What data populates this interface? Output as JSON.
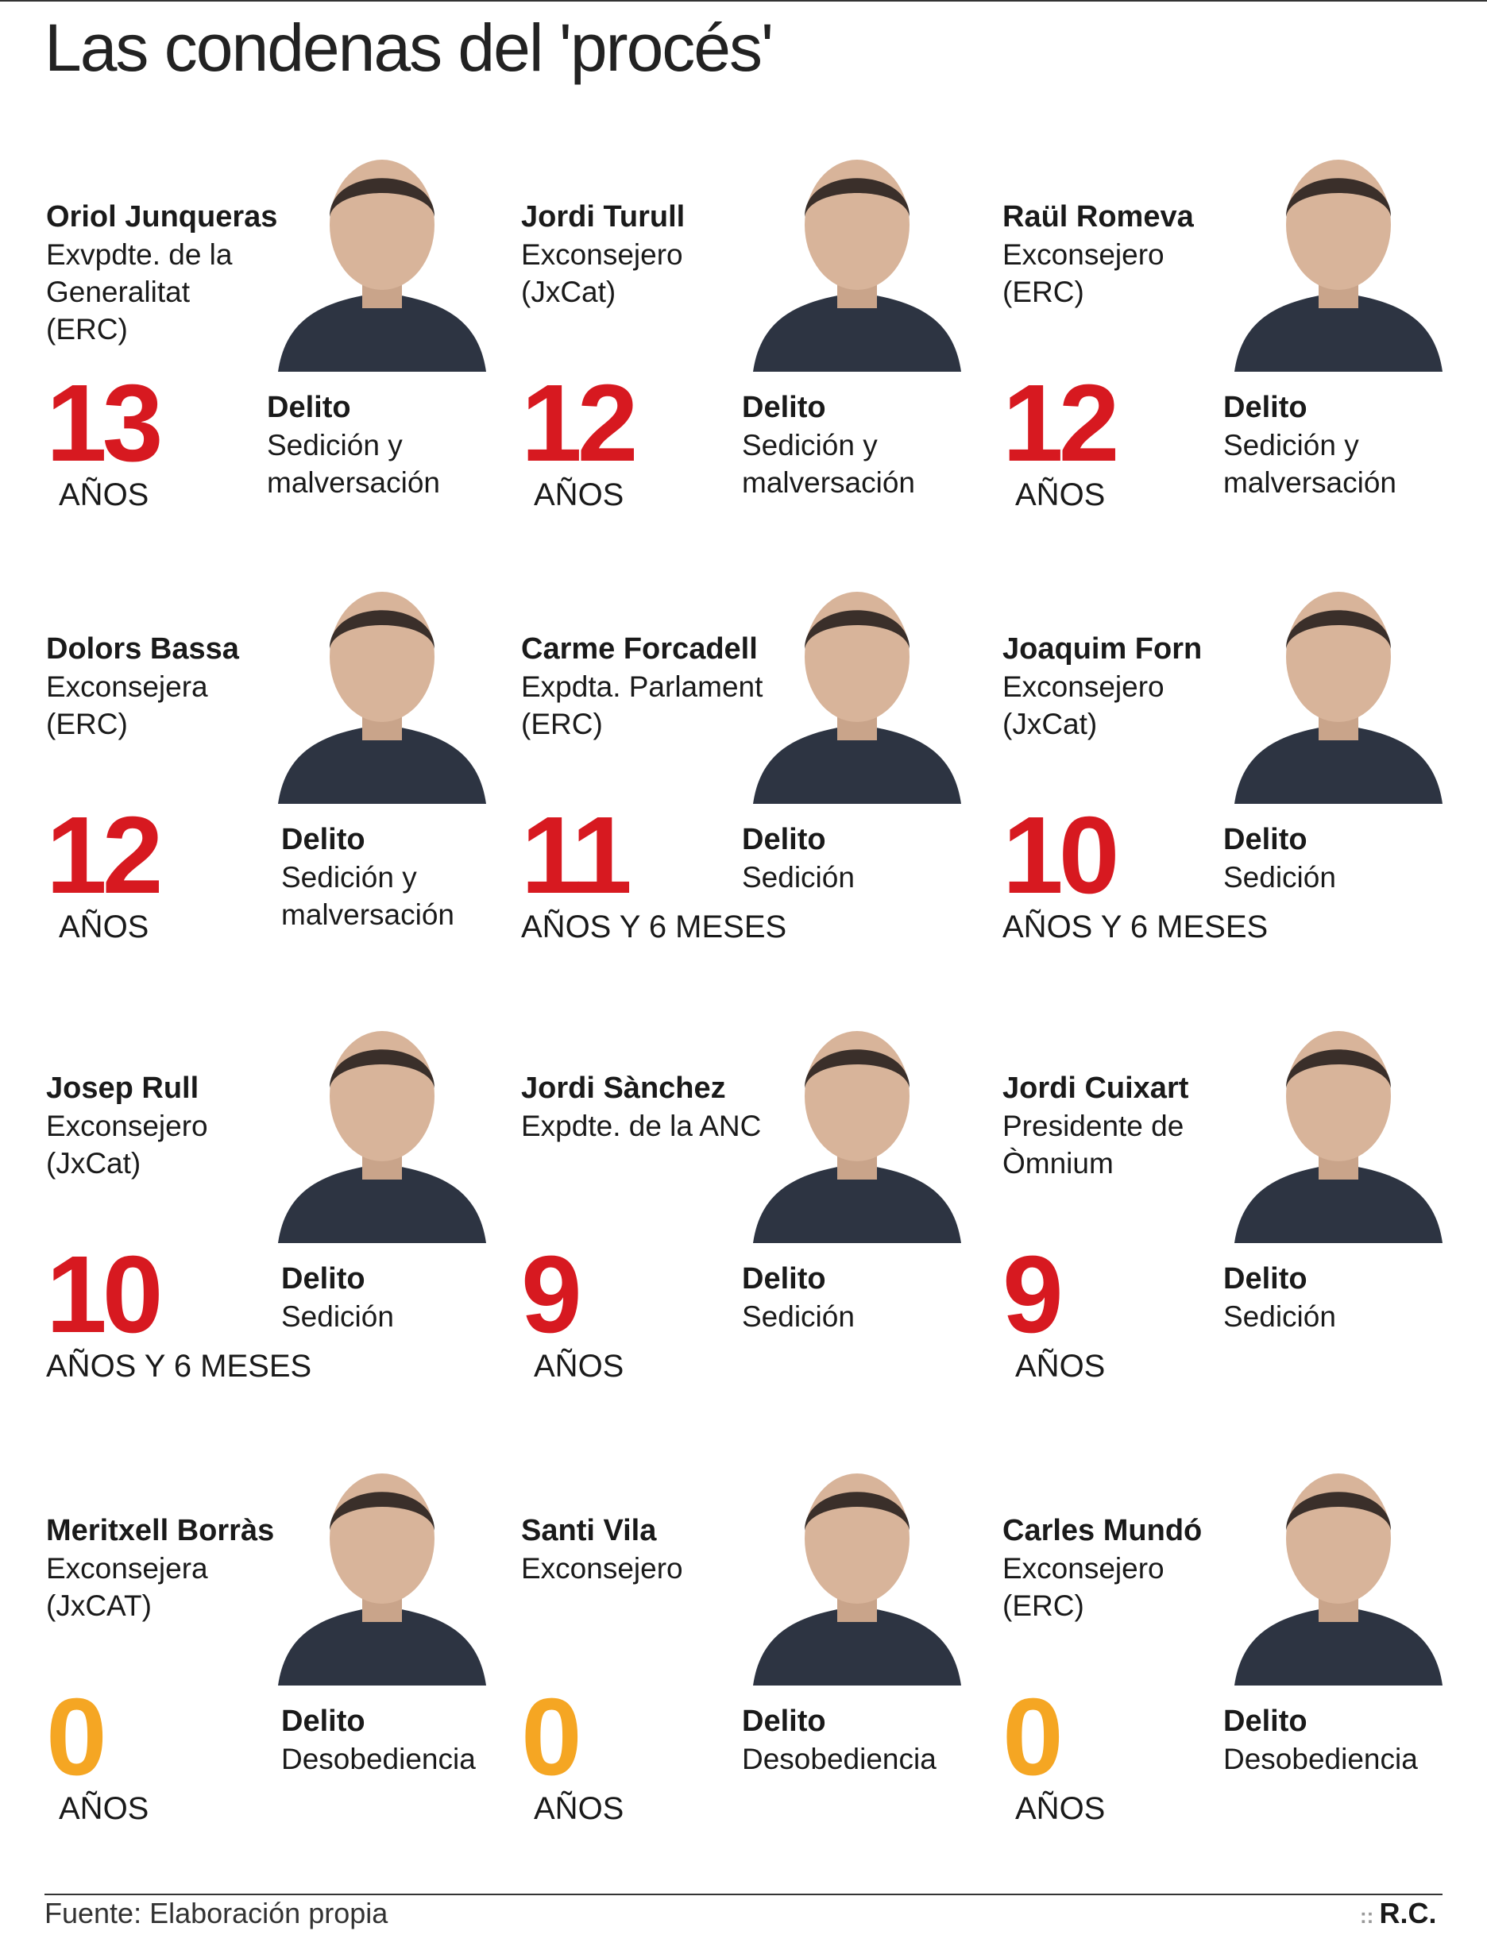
{
  "title": "Las condenas del 'procés'",
  "people": [
    {
      "name": "Oriol Junqueras",
      "role": [
        "Exvpdte. de la",
        "Generalitat",
        " (ERC)"
      ],
      "sentence": 13,
      "unit": "AÑOS",
      "color": "#d71920",
      "crime_label": "Delito",
      "crime": [
        "Sedición y",
        "malversación"
      ]
    },
    {
      "name": "Jordi Turull",
      "role": [
        "Exconsejero",
        "(JxCat)"
      ],
      "sentence": 12,
      "unit": "AÑOS",
      "color": "#d71920",
      "crime_label": "Delito",
      "crime": [
        "Sedición y",
        "malversación"
      ]
    },
    {
      "name": "Raül Romeva",
      "role": [
        "Exconsejero",
        "(ERC)"
      ],
      "sentence": 12,
      "unit": "AÑOS",
      "color": "#d71920",
      "crime_label": "Delito",
      "crime": [
        "Sedición y",
        "malversación"
      ]
    },
    {
      "name": "Dolors Bassa",
      "role": [
        "Exconsejera",
        " (ERC)"
      ],
      "sentence": 12,
      "unit": "AÑOS",
      "color": "#d71920",
      "crime_label": "Delito",
      "crime": [
        "Sedición y",
        "malversación"
      ]
    },
    {
      "name": "Carme Forcadell",
      "role": [
        "Expdta. Parlament",
        "(ERC)"
      ],
      "sentence": 11,
      "unit": "AÑOS Y 6 MESES",
      "color": "#d71920",
      "crime_label": "Delito",
      "crime": [
        "Sedición"
      ]
    },
    {
      "name": "Joaquim Forn",
      "role": [
        "Exconsejero",
        " (JxCat)"
      ],
      "sentence": 10,
      "unit": "AÑOS Y 6 MESES",
      "color": "#d71920",
      "crime_label": "Delito",
      "crime": [
        "Sedición"
      ]
    },
    {
      "name": "Josep Rull",
      "role": [
        "Exconsejero",
        "(JxCat)"
      ],
      "sentence": 10,
      "unit": "AÑOS Y 6 MESES",
      "color": "#d71920",
      "crime_label": "Delito",
      "crime": [
        "Sedición"
      ]
    },
    {
      "name": "Jordi Sànchez",
      "role": [
        "Expdte. de la ANC"
      ],
      "sentence": 9,
      "unit": "AÑOS",
      "color": "#d71920",
      "crime_label": "Delito",
      "crime": [
        "Sedición"
      ]
    },
    {
      "name": "Jordi Cuixart",
      "role": [
        "Presidente de",
        "Òmnium"
      ],
      "sentence": 9,
      "unit": "AÑOS",
      "color": "#d71920",
      "crime_label": "Delito",
      "crime": [
        "Sedición"
      ]
    },
    {
      "name": "Meritxell Borràs",
      "role": [
        "Exconsejera",
        "(JxCAT)"
      ],
      "sentence": 0,
      "unit": "AÑOS",
      "color": "#f5a623",
      "crime_label": "Delito",
      "crime": [
        "Desobediencia"
      ]
    },
    {
      "name": "Santi Vila",
      "role": [
        "Exconsejero"
      ],
      "sentence": 0,
      "unit": "AÑOS",
      "color": "#f5a623",
      "crime_label": "Delito",
      "crime": [
        "Desobediencia"
      ]
    },
    {
      "name": "Carles Mundó",
      "role": [
        "Exconsejero",
        "(ERC)"
      ],
      "sentence": 0,
      "unit": "AÑOS",
      "color": "#f5a623",
      "crime_label": "Delito",
      "crime": [
        "Desobediencia"
      ]
    }
  ],
  "footer": {
    "source": "Fuente: Elaboración propia",
    "credit": "R.C."
  }
}
